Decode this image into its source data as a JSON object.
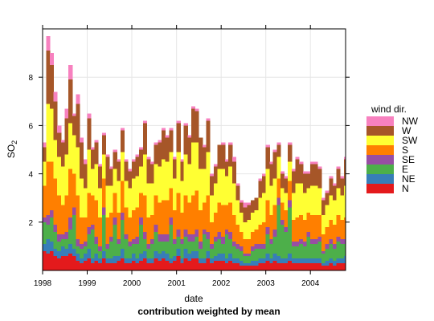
{
  "chart_data": {
    "type": "bar",
    "stacked": true,
    "xlabel": "date",
    "ylabel_main": "SO",
    "ylabel_sub": "2",
    "caption": "contribution weighted by mean",
    "xlim": [
      "1998-01",
      "2004-10"
    ],
    "ylim": [
      0,
      10
    ],
    "x_ticks": [
      "1998",
      "1999",
      "2000",
      "2001",
      "2002",
      "2003",
      "2004"
    ],
    "y_ticks": [
      "2",
      "4",
      "6",
      "8"
    ],
    "grid": true,
    "legend": {
      "title": "wind dir.",
      "placement": "right",
      "entries": [
        {
          "name": "NW",
          "color": "#f781bf"
        },
        {
          "name": "W",
          "color": "#a65628"
        },
        {
          "name": "SW",
          "color": "#ffff33"
        },
        {
          "name": "S",
          "color": "#ff7f00"
        },
        {
          "name": "SE",
          "color": "#984ea3"
        },
        {
          "name": "E",
          "color": "#4daf4a"
        },
        {
          "name": "NE",
          "color": "#377eb8"
        },
        {
          "name": "N",
          "color": "#e41a1c"
        }
      ]
    },
    "stack_order": [
      "N",
      "NE",
      "E",
      "SE",
      "S",
      "SW",
      "W",
      "NW"
    ],
    "months": [
      "1998-01",
      "1998-02",
      "1998-03",
      "1998-04",
      "1998-05",
      "1998-06",
      "1998-07",
      "1998-08",
      "1998-09",
      "1998-10",
      "1998-11",
      "1998-12",
      "1999-01",
      "1999-02",
      "1999-03",
      "1999-04",
      "1999-05",
      "1999-06",
      "1999-07",
      "1999-08",
      "1999-09",
      "1999-10",
      "1999-11",
      "1999-12",
      "2000-01",
      "2000-02",
      "2000-03",
      "2000-04",
      "2000-05",
      "2000-06",
      "2000-07",
      "2000-08",
      "2000-09",
      "2000-10",
      "2000-11",
      "2000-12",
      "2001-01",
      "2001-02",
      "2001-03",
      "2001-04",
      "2001-05",
      "2001-06",
      "2001-07",
      "2001-08",
      "2001-09",
      "2001-10",
      "2001-11",
      "2001-12",
      "2002-01",
      "2002-02",
      "2002-03",
      "2002-04",
      "2002-05",
      "2002-06",
      "2002-07",
      "2002-08",
      "2002-09",
      "2002-10",
      "2002-11",
      "2002-12",
      "2003-01",
      "2003-02",
      "2003-03",
      "2003-04",
      "2003-05",
      "2003-06",
      "2003-07",
      "2003-08",
      "2003-09",
      "2003-10",
      "2003-11",
      "2003-12",
      "2004-01",
      "2004-02",
      "2004-03",
      "2004-04",
      "2004-05",
      "2004-06",
      "2004-07",
      "2004-08",
      "2004-09",
      "2004-10"
    ],
    "totals": [
      5.3,
      9.7,
      9.0,
      7.4,
      6.0,
      5.4,
      6.7,
      8.5,
      6.5,
      7.3,
      5.5,
      4.6,
      6.5,
      5.1,
      5.4,
      4.4,
      5.7,
      4.8,
      4.3,
      5.0,
      4.6,
      5.9,
      4.6,
      4.2,
      4.6,
      4.8,
      5.1,
      6.2,
      4.7,
      4.5,
      5.3,
      5.4,
      5.9,
      5.6,
      5.9,
      4.7,
      6.2,
      4.6,
      6.1,
      5.6,
      6.8,
      6.7,
      5.5,
      5.2,
      6.3,
      4.0,
      4.4,
      5.2,
      5.3,
      4.6,
      5.3,
      4.7,
      3.6,
      2.9,
      2.8,
      2.8,
      2.9,
      3.0,
      3.8,
      4.0,
      5.2,
      4.5,
      5.0,
      5.3,
      4.1,
      3.9,
      5.3,
      4.2,
      4.7,
      4.5,
      4.1,
      4.1,
      4.5,
      4.5,
      4.3,
      3.0,
      3.3,
      3.9,
      3.6,
      4.3,
      3.9,
      4.7
    ],
    "N": [
      0.8,
      0.7,
      0.8,
      0.6,
      0.5,
      0.6,
      0.6,
      0.7,
      0.6,
      0.4,
      0.3,
      0.4,
      0.5,
      0.3,
      0.4,
      0.3,
      0.5,
      0.3,
      0.3,
      0.3,
      0.4,
      0.5,
      0.3,
      0.3,
      0.4,
      0.3,
      0.4,
      0.5,
      0.3,
      0.3,
      0.5,
      0.4,
      0.5,
      0.4,
      0.3,
      0.4,
      0.6,
      0.3,
      0.5,
      0.4,
      0.5,
      0.5,
      0.3,
      0.3,
      0.5,
      0.3,
      0.4,
      0.4,
      0.4,
      0.3,
      0.4,
      0.3,
      0.3,
      0.2,
      0.2,
      0.2,
      0.2,
      0.2,
      0.3,
      0.3,
      0.4,
      0.3,
      0.4,
      0.3,
      0.3,
      0.3,
      0.4,
      0.3,
      0.3,
      0.3,
      0.3,
      0.3,
      0.3,
      0.3,
      0.3,
      0.2,
      0.2,
      0.3,
      0.2,
      0.3,
      0.3,
      0.3
    ],
    "NE": [
      0.3,
      0.6,
      0.4,
      0.3,
      0.3,
      0.4,
      0.3,
      0.4,
      0.3,
      0.3,
      0.2,
      0.3,
      0.4,
      0.2,
      0.3,
      0.2,
      0.3,
      0.2,
      0.2,
      0.3,
      0.2,
      0.4,
      0.2,
      0.2,
      0.3,
      0.2,
      0.3,
      0.3,
      0.2,
      0.2,
      0.3,
      0.3,
      0.3,
      0.3,
      0.2,
      0.2,
      0.3,
      0.2,
      0.4,
      0.3,
      0.3,
      0.3,
      0.2,
      0.2,
      0.3,
      0.2,
      0.2,
      0.3,
      0.3,
      0.2,
      0.3,
      0.2,
      0.2,
      0.2,
      0.1,
      0.1,
      0.2,
      0.2,
      0.2,
      0.2,
      0.3,
      0.2,
      0.3,
      0.3,
      0.2,
      0.2,
      0.3,
      0.2,
      0.2,
      0.2,
      0.2,
      0.2,
      0.2,
      0.2,
      0.2,
      0.1,
      0.2,
      0.2,
      0.2,
      0.2,
      0.2,
      0.3
    ],
    "E": [
      0.9,
      0.6,
      1.0,
      0.7,
      0.4,
      0.3,
      0.4,
      0.6,
      1.4,
      0.3,
      0.4,
      0.3,
      0.6,
      1.2,
      0.4,
      0.3,
      1.5,
      0.4,
      0.7,
      1.3,
      0.5,
      1.2,
      0.8,
      0.5,
      0.4,
      0.6,
      1.2,
      0.5,
      0.4,
      0.6,
      0.8,
      0.5,
      0.4,
      0.5,
      1.4,
      0.5,
      0.5,
      0.6,
      0.5,
      0.5,
      0.4,
      0.6,
      0.4,
      1.0,
      0.5,
      0.4,
      0.6,
      0.6,
      0.4,
      1.0,
      0.6,
      0.5,
      0.4,
      0.4,
      0.3,
      0.3,
      0.4,
      0.5,
      0.4,
      0.4,
      0.8,
      0.6,
      0.7,
      2.1,
      1.4,
      1.1,
      1.9,
      0.5,
      0.5,
      0.6,
      0.5,
      0.9,
      0.6,
      0.6,
      0.7,
      0.4,
      0.5,
      0.6,
      0.5,
      0.7,
      0.6,
      0.5
    ],
    "SE": [
      0.2,
      0.4,
      0.3,
      0.3,
      0.3,
      0.2,
      0.3,
      0.5,
      0.3,
      0.3,
      0.2,
      0.2,
      0.3,
      0.2,
      0.3,
      0.2,
      0.3,
      0.2,
      0.2,
      0.3,
      0.2,
      0.3,
      0.2,
      0.2,
      0.2,
      0.3,
      0.3,
      0.3,
      0.2,
      0.2,
      0.3,
      0.3,
      0.3,
      0.3,
      0.3,
      0.2,
      0.3,
      0.2,
      0.3,
      0.3,
      0.3,
      0.3,
      0.3,
      0.2,
      0.3,
      0.2,
      0.2,
      0.3,
      0.3,
      0.2,
      0.3,
      0.2,
      0.2,
      0.2,
      0.1,
      0.1,
      0.2,
      0.2,
      0.2,
      0.2,
      0.3,
      0.2,
      0.3,
      0.3,
      0.2,
      0.2,
      0.3,
      0.2,
      0.2,
      0.2,
      0.2,
      0.2,
      0.2,
      0.2,
      0.2,
      0.1,
      0.2,
      0.2,
      0.2,
      0.2,
      0.2,
      0.2
    ],
    "S": [
      1.3,
      2.2,
      2.0,
      1.9,
      1.6,
      1.2,
      1.5,
      2.0,
      1.4,
      1.8,
      1.1,
      1.0,
      1.4,
      1.2,
      1.5,
      1.2,
      1.2,
      1.1,
      1.0,
      1.0,
      1.1,
      1.3,
      1.1,
      1.0,
      1.2,
      1.2,
      1.0,
      1.5,
      1.1,
      1.0,
      1.2,
      1.3,
      1.4,
      1.4,
      1.2,
      1.2,
      1.5,
      1.1,
      1.4,
      1.3,
      1.6,
      1.6,
      1.3,
      1.1,
      1.5,
      0.9,
      1.0,
      1.2,
      1.3,
      1.0,
      1.2,
      1.1,
      0.8,
      0.6,
      0.6,
      0.6,
      0.6,
      0.6,
      0.8,
      0.9,
      1.1,
      1.0,
      1.0,
      0.8,
      0.7,
      0.7,
      0.8,
      0.9,
      1.0,
      1.0,
      0.9,
      0.8,
      1.0,
      1.0,
      0.9,
      0.7,
      0.7,
      0.8,
      0.8,
      0.9,
      0.8,
      0.9
    ],
    "SW": [
      1.0,
      2.4,
      2.2,
      1.6,
      1.6,
      1.6,
      1.7,
      1.9,
      1.6,
      2.0,
      1.6,
      1.2,
      1.8,
      1.1,
      1.5,
      1.2,
      1.0,
      1.3,
      1.1,
      1.0,
      1.3,
      1.2,
      1.1,
      1.2,
      1.3,
      1.3,
      1.1,
      1.7,
      1.4,
      1.3,
      1.3,
      1.5,
      1.7,
      1.6,
      1.5,
      1.3,
      1.7,
      1.3,
      1.7,
      1.6,
      2.2,
      2.0,
      1.7,
      1.4,
      1.8,
      1.1,
      1.2,
      1.4,
      1.5,
      1.2,
      1.5,
      1.3,
      1.0,
      0.8,
      0.7,
      0.8,
      0.8,
      0.8,
      1.1,
      1.2,
      1.3,
      1.2,
      1.1,
      0.9,
      0.6,
      0.7,
      0.8,
      1.1,
      1.4,
      1.3,
      1.1,
      1.0,
      1.2,
      1.2,
      1.1,
      0.8,
      0.9,
      1.0,
      1.0,
      1.1,
      1.0,
      1.3
    ],
    "W": [
      0.6,
      2.2,
      1.8,
      1.6,
      1.0,
      1.0,
      1.5,
      1.8,
      0.8,
      1.8,
      1.5,
      1.0,
      1.3,
      0.8,
      0.9,
      0.9,
      0.8,
      1.2,
      0.7,
      0.7,
      0.8,
      0.9,
      0.8,
      0.7,
      0.7,
      0.8,
      0.7,
      1.3,
      1.0,
      0.8,
      0.8,
      1.0,
      1.2,
      1.0,
      0.9,
      0.8,
      1.2,
      0.8,
      1.2,
      1.1,
      1.4,
      1.3,
      1.3,
      0.9,
      1.3,
      0.8,
      0.7,
      1.0,
      1.0,
      0.6,
      0.9,
      0.9,
      0.6,
      0.4,
      0.6,
      0.6,
      0.5,
      0.5,
      0.7,
      0.7,
      0.9,
      0.9,
      1.1,
      0.5,
      0.6,
      0.6,
      0.7,
      0.9,
      1.0,
      0.8,
      0.8,
      0.6,
      0.9,
      0.9,
      0.8,
      0.6,
      0.5,
      0.7,
      0.6,
      0.8,
      0.7,
      1.1
    ],
    "NW": [
      0.2,
      0.6,
      0.5,
      0.4,
      0.3,
      0.1,
      0.4,
      0.6,
      0.1,
      0.4,
      0.2,
      0.2,
      0.2,
      0.1,
      0.1,
      0.1,
      0.1,
      0.1,
      0.1,
      0.1,
      0.1,
      0.1,
      0.1,
      0.1,
      0.1,
      0.1,
      0.1,
      0.1,
      0.1,
      0.1,
      0.1,
      0.1,
      0.1,
      0.1,
      0.1,
      0.1,
      0.1,
      0.1,
      0.1,
      0.1,
      0.1,
      0.1,
      0.0,
      0.1,
      0.1,
      0.1,
      0.1,
      0.0,
      0.1,
      0.1,
      0.1,
      0.2,
      0.1,
      0.1,
      0.2,
      0.1,
      0.0,
      0.0,
      0.1,
      0.1,
      0.1,
      0.1,
      0.1,
      0.1,
      0.1,
      0.1,
      0.1,
      0.1,
      0.1,
      0.1,
      0.1,
      0.1,
      0.1,
      0.1,
      0.1,
      0.1,
      0.1,
      0.1,
      0.1,
      0.1,
      0.1,
      0.1
    ]
  }
}
